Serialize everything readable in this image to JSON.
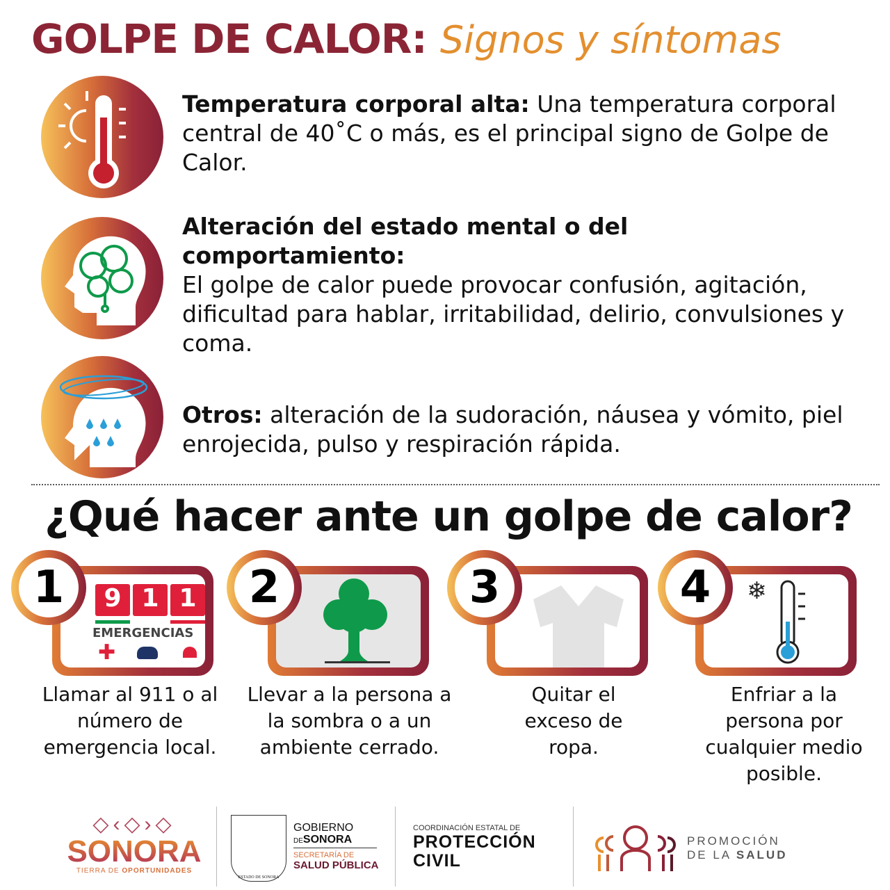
{
  "title": {
    "main": "GOLPE DE CALOR:",
    "sub": "Signos y síntomas"
  },
  "symptoms": [
    {
      "icon": "thermometer-sun-icon",
      "heading": "Temperatura corporal alta:",
      "text": " Una temperatura corporal central de 40˚C o más, es el principal signo de Golpe de Calor."
    },
    {
      "icon": "head-brain-icon",
      "heading": "Alteración del estado mental o del comportamiento:",
      "text": "El golpe de calor puede provocar confusión, agitación, dificultad para hablar, irritabilidad, delirio, convulsiones y coma."
    },
    {
      "icon": "dizzy-sweating-head-icon",
      "heading": "Otros:",
      "text": " alteración de la sudoración, náusea y vómito, piel enrojecida, pulso y respiración rápida."
    }
  ],
  "question": "¿Qué hacer ante un golpe de calor?",
  "steps": [
    {
      "number": "1",
      "icon": "emergency-911-icon",
      "digits": [
        "9",
        "1",
        "1"
      ],
      "label": "EMERGENCIAS",
      "caption": "Llamar al 911 o al número de emergencia local."
    },
    {
      "number": "2",
      "icon": "tree-shade-icon",
      "caption": "Llevar a la persona a la sombra o a un ambiente cerrado."
    },
    {
      "number": "3",
      "icon": "shirt-icon",
      "caption": "Quitar el exceso de ropa."
    },
    {
      "number": "4",
      "icon": "cold-thermometer-icon",
      "caption": "Enfriar a la persona por cualquier medio posible."
    }
  ],
  "footer": {
    "sonora": {
      "name": "SONORA",
      "tagline_a": "TIERRA DE ",
      "tagline_b": "OPORTUNIDADES"
    },
    "gobierno": {
      "line1": "GOBIERNO",
      "de": "DE",
      "sonora": "SONORA",
      "secretaria": "SECRETARÍA DE",
      "salud": "SALUD PÚBLICA",
      "seal": "ESTADO DE SONORA"
    },
    "proteccion": {
      "small": "COORDINACIÓN ESTATAL DE",
      "line1": "PROTECCIÓN",
      "line2": "CIVIL"
    },
    "promocion": {
      "line1": "PROMOCIÓN",
      "de": "DE LA ",
      "salud": "SALUD"
    }
  },
  "colors": {
    "maroon": "#8b2535",
    "orange": "#e38f2f",
    "red911": "#e0203a",
    "green": "#0e9a4a",
    "blue": "#2a9fd8"
  }
}
